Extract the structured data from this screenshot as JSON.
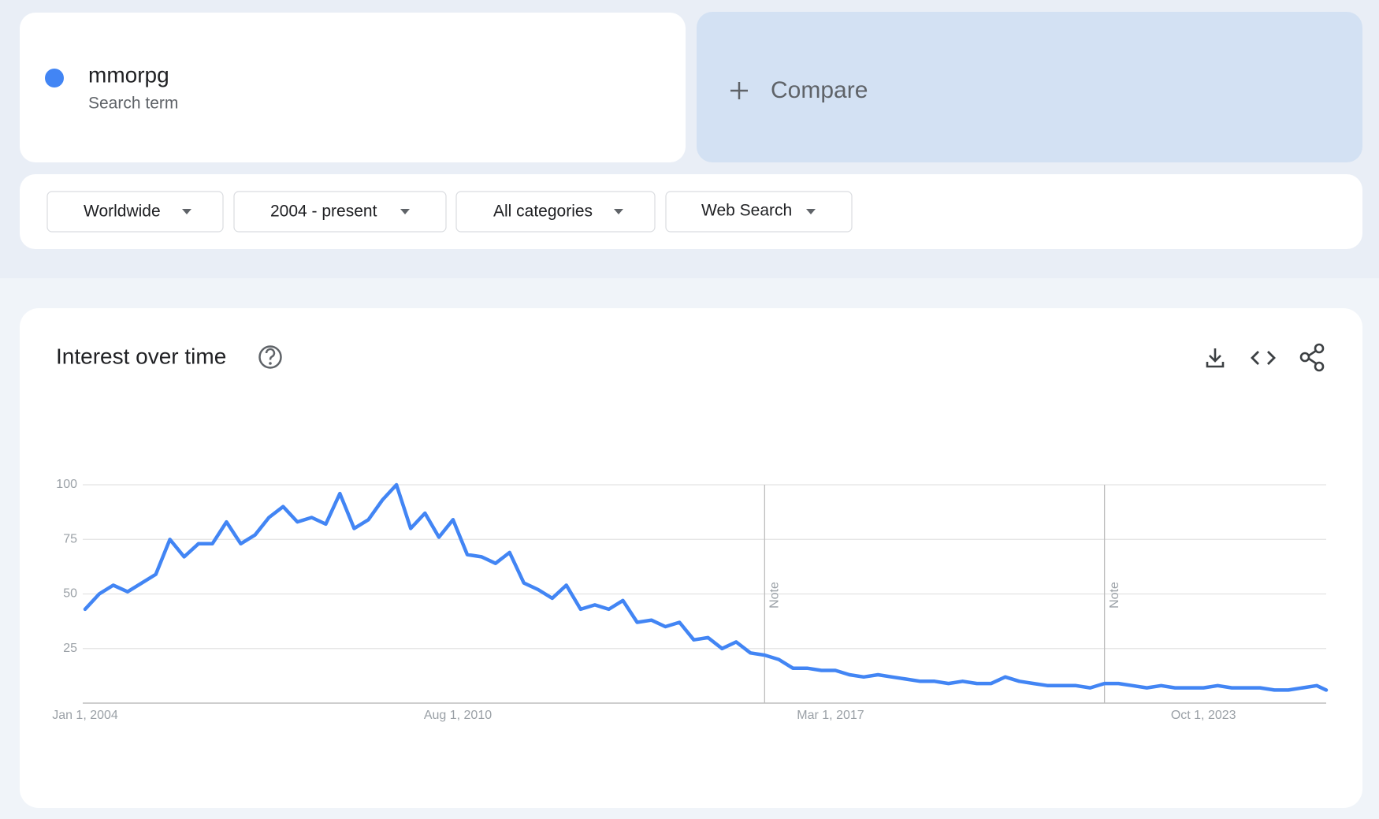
{
  "search_term": {
    "name": "mmorpg",
    "type": "Search term"
  },
  "compare": "Compare",
  "filters": [
    "Worldwide",
    "2004 - present",
    "All categories",
    "Web Search"
  ],
  "chart_data": {
    "type": "line",
    "title": "Interest over time",
    "x": [
      "2004-01-01",
      "2004-04-01",
      "2004-07-01",
      "2004-10-01",
      "2005-01-01",
      "2005-04-01",
      "2005-07-01",
      "2005-10-01",
      "2006-01-01",
      "2006-04-01",
      "2006-07-01",
      "2006-10-01",
      "2007-01-01",
      "2007-04-01",
      "2007-07-01",
      "2007-10-01",
      "2008-01-01",
      "2008-04-01",
      "2008-07-01",
      "2008-10-01",
      "2009-01-01",
      "2009-04-01",
      "2009-07-01",
      "2009-10-01",
      "2010-01-01",
      "2010-04-01",
      "2010-07-01",
      "2010-10-01",
      "2011-01-01",
      "2011-04-01",
      "2011-07-01",
      "2011-10-01",
      "2012-01-01",
      "2012-04-01",
      "2012-07-01",
      "2012-10-01",
      "2013-01-01",
      "2013-04-01",
      "2013-07-01",
      "2013-10-01",
      "2014-01-01",
      "2014-04-01",
      "2014-07-01",
      "2014-10-01",
      "2015-01-01",
      "2015-04-01",
      "2015-07-01",
      "2015-10-01",
      "2016-01-01",
      "2016-04-01",
      "2016-07-01",
      "2016-10-01",
      "2017-01-01",
      "2017-04-01",
      "2017-07-01",
      "2017-10-01",
      "2018-01-01",
      "2018-04-01",
      "2018-07-01",
      "2018-10-01",
      "2019-01-01",
      "2019-04-01",
      "2019-07-01",
      "2019-10-01",
      "2020-01-01",
      "2020-04-01",
      "2020-07-01",
      "2020-10-01",
      "2021-01-01",
      "2021-04-01",
      "2021-07-01",
      "2021-10-01",
      "2022-01-01",
      "2022-04-01",
      "2022-07-01",
      "2022-10-01",
      "2023-01-01",
      "2023-04-01",
      "2023-07-01",
      "2023-10-01",
      "2024-01-01",
      "2024-04-01",
      "2024-07-01",
      "2024-10-01",
      "2025-01-01",
      "2025-04-01",
      "2025-07-01",
      "2025-10-01",
      "2025-12-01"
    ],
    "series": [
      {
        "color": "#4285f4",
        "values": [
          43,
          50,
          54,
          51,
          55,
          59,
          75,
          67,
          73,
          73,
          83,
          73,
          77,
          85,
          90,
          83,
          85,
          82,
          96,
          80,
          84,
          93,
          100,
          80,
          87,
          76,
          84,
          68,
          67,
          64,
          69,
          55,
          52,
          48,
          54,
          43,
          45,
          43,
          47,
          37,
          38,
          35,
          37,
          29,
          30,
          25,
          28,
          23,
          22,
          20,
          16,
          16,
          15,
          15,
          13,
          12,
          13,
          12,
          11,
          10,
          10,
          9,
          10,
          9,
          9,
          12,
          10,
          9,
          8,
          8,
          8,
          7,
          9,
          9,
          8,
          7,
          8,
          7,
          7,
          7,
          8,
          7,
          7,
          7,
          6,
          6,
          7,
          8,
          6
        ]
      }
    ],
    "xlim": [
      "2004-01-01",
      "2025-12-01"
    ],
    "xticks": [
      {
        "value": "2004-01-01",
        "label": "Jan 1, 2004"
      },
      {
        "value": "2010-08-01",
        "label": "Aug 1, 2010"
      },
      {
        "value": "2017-03-01",
        "label": "Mar 1, 2017"
      },
      {
        "value": "2023-10-01",
        "label": "Oct 1, 2023"
      }
    ],
    "ylim": [
      0,
      100
    ],
    "yticks": [
      25,
      50,
      75,
      100
    ],
    "grid": true,
    "annotations": [
      {
        "x": "2016-01-01",
        "label": "Note"
      },
      {
        "x": "2022-01-01",
        "label": "Note"
      }
    ]
  }
}
